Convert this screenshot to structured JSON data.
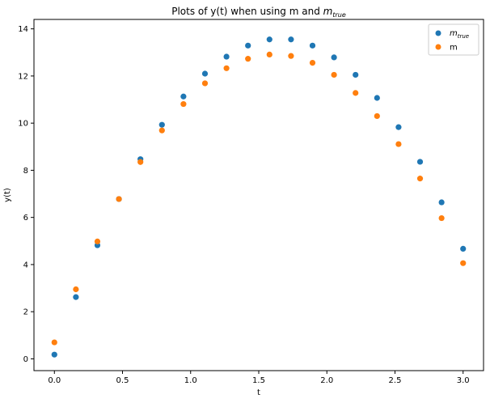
{
  "chart_data": {
    "type": "scatter",
    "title": {
      "prefix": "Plots of y(t) when using m and ",
      "sym": "m",
      "sub": "true"
    },
    "xlabel": "t",
    "ylabel": "y(t)",
    "xlim": [
      -0.15,
      3.15
    ],
    "ylim": [
      -0.5,
      14.4
    ],
    "xticks": [
      0.0,
      0.5,
      1.0,
      1.5,
      2.0,
      2.5,
      3.0
    ],
    "xtick_labels": [
      "0.0",
      "0.5",
      "1.0",
      "1.5",
      "2.0",
      "2.5",
      "3.0"
    ],
    "yticks": [
      0,
      2,
      4,
      6,
      8,
      10,
      12,
      14
    ],
    "ytick_labels": [
      "0",
      "2",
      "4",
      "6",
      "8",
      "10",
      "12",
      "14"
    ],
    "grid": false,
    "legend_position": "top-right",
    "x": [
      0.0,
      0.1579,
      0.3158,
      0.4737,
      0.6316,
      0.7895,
      0.9474,
      1.1053,
      1.2632,
      1.4211,
      1.5789,
      1.7368,
      1.8947,
      2.0526,
      2.2105,
      2.3684,
      2.5263,
      2.6842,
      2.8421,
      3.0
    ],
    "series": [
      {
        "legend": {
          "sym": "m",
          "sub": "true"
        },
        "color": "#1f77b4",
        "values": [
          0.18,
          2.62,
          4.82,
          6.78,
          8.47,
          9.93,
          11.13,
          12.1,
          12.82,
          13.29,
          13.55,
          13.55,
          13.29,
          12.79,
          12.05,
          11.07,
          9.83,
          8.36,
          6.64,
          4.67
        ]
      },
      {
        "legend": {
          "sym": "m",
          "sub": ""
        },
        "color": "#ff7f0e",
        "values": [
          0.7,
          2.95,
          4.98,
          6.78,
          8.35,
          9.69,
          10.81,
          11.69,
          12.33,
          12.73,
          12.91,
          12.85,
          12.56,
          12.05,
          11.28,
          10.3,
          9.11,
          7.65,
          5.97,
          4.06
        ]
      }
    ]
  }
}
